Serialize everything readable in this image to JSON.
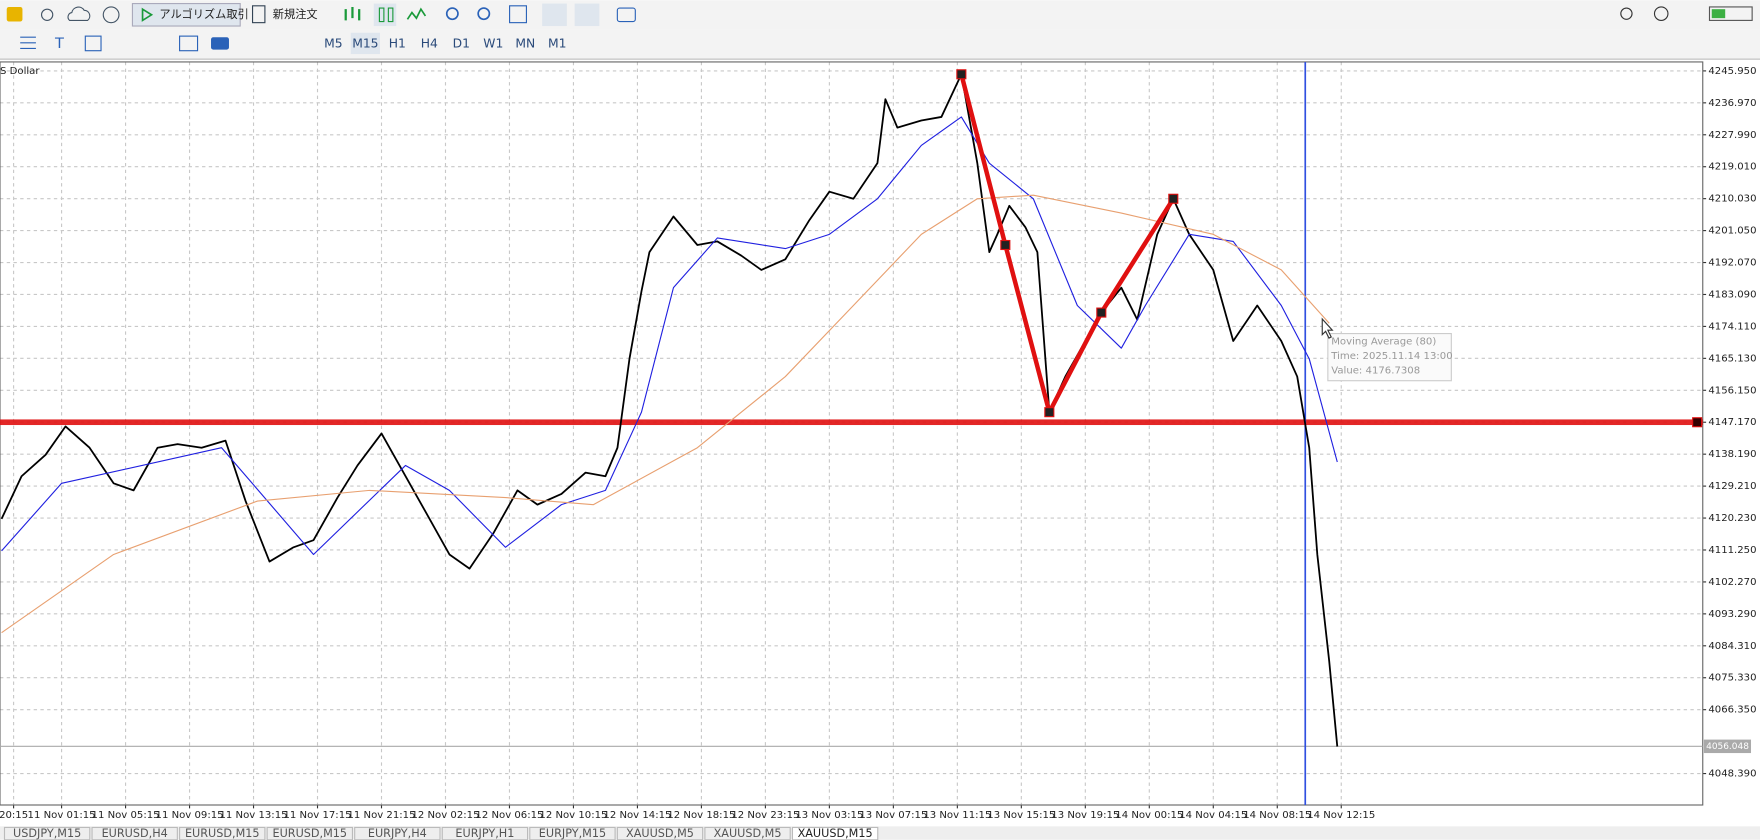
{
  "toolbar": {
    "algo_trading": "アルゴリズム取引",
    "new_order": "新規注文"
  },
  "timeframes": [
    "M5",
    "M15",
    "H1",
    "H4",
    "D1",
    "W1",
    "MN",
    "M1"
  ],
  "active_timeframe": "M15",
  "symbol_label": "S Dollar",
  "tooltip": {
    "title": "Moving Average (80)",
    "time": "Time: 2025.11.14 13:00",
    "value": "Value: 4176.7308"
  },
  "tabs": [
    "USDJPY,M15",
    "EURUSD,H4",
    "EURUSD,M15",
    "EURUSD,M15",
    "EURJPY,H4",
    "EURJPY,H1",
    "EURJPY,M15",
    "XAUUSD,M5",
    "XAUUSD,M5",
    "XAUUSD,M15"
  ],
  "active_tab": "XAUUSD,M15",
  "chart_data": {
    "type": "line",
    "xlim": [
      -15.4,
      410.4
    ],
    "ylim": [
      4039.55,
      4248.47
    ],
    "grid": true,
    "yticks": [
      {
        "value": 4245.95,
        "label": "4245.950"
      },
      {
        "value": 4236.97,
        "label": "4236.970"
      },
      {
        "value": 4227.99,
        "label": "4227.990"
      },
      {
        "value": 4219.01,
        "label": "4219.010"
      },
      {
        "value": 4210.03,
        "label": "4210.030"
      },
      {
        "value": 4201.05,
        "label": "4201.050"
      },
      {
        "value": 4192.07,
        "label": "4192.070"
      },
      {
        "value": 4183.09,
        "label": "4183.090"
      },
      {
        "value": 4174.11,
        "label": "4174.110"
      },
      {
        "value": 4165.13,
        "label": "4165.130"
      },
      {
        "value": 4156.15,
        "label": "4156.150"
      },
      {
        "value": 4147.17,
        "label": "4147.170"
      },
      {
        "value": 4138.19,
        "label": "4138.190"
      },
      {
        "value": 4129.21,
        "label": "4129.210"
      },
      {
        "value": 4120.23,
        "label": "4120.230"
      },
      {
        "value": 4111.25,
        "label": "4111.250"
      },
      {
        "value": 4102.27,
        "label": "4102.270"
      },
      {
        "value": 4093.29,
        "label": "4093.290"
      },
      {
        "value": 4084.31,
        "label": "4084.310"
      },
      {
        "value": 4075.33,
        "label": "4075.330"
      },
      {
        "value": 4066.35,
        "label": "4066.350"
      },
      {
        "value": 4048.39,
        "label": "4048.390"
      }
    ],
    "xticks": [
      {
        "value": -12,
        "label": "20:15"
      },
      {
        "value": 0,
        "label": "11 Nov 01:15"
      },
      {
        "value": 16,
        "label": "11 Nov 05:15"
      },
      {
        "value": 32,
        "label": "11 Nov 09:15"
      },
      {
        "value": 48,
        "label": "11 Nov 13:15"
      },
      {
        "value": 64,
        "label": "11 Nov 17:15"
      },
      {
        "value": 80,
        "label": "11 Nov 21:15"
      },
      {
        "value": 96,
        "label": "12 Nov 02:15"
      },
      {
        "value": 112,
        "label": "12 Nov 06:15"
      },
      {
        "value": 128,
        "label": "12 Nov 10:15"
      },
      {
        "value": 144,
        "label": "12 Nov 14:15"
      },
      {
        "value": 160,
        "label": "12 Nov 18:15"
      },
      {
        "value": 176,
        "label": "12 Nov 23:15"
      },
      {
        "value": 192,
        "label": "13 Nov 03:15"
      },
      {
        "value": 208,
        "label": "13 Nov 07:15"
      },
      {
        "value": 224,
        "label": "13 Nov 11:15"
      },
      {
        "value": 240,
        "label": "13 Nov 15:15"
      },
      {
        "value": 256,
        "label": "13 Nov 19:15"
      },
      {
        "value": 272,
        "label": "14 Nov 00:15"
      },
      {
        "value": 288,
        "label": "14 Nov 04:15"
      },
      {
        "value": 304,
        "label": "14 Nov 08:15"
      },
      {
        "value": 320,
        "label": "14 Nov 12:15"
      }
    ],
    "series": [
      {
        "color": "#000000",
        "x": [
          -15,
          -10,
          -4,
          1,
          7,
          13,
          18,
          24,
          29,
          35,
          41,
          46,
          52,
          58,
          63,
          69,
          74,
          80,
          86,
          91,
          97,
          102,
          108,
          114,
          119,
          125,
          131,
          136,
          139,
          142,
          145,
          147,
          153,
          159,
          164,
          170,
          175,
          181,
          187,
          192,
          198,
          204,
          206,
          209,
          215,
          220,
          225,
          229,
          232,
          234,
          237,
          241,
          244,
          247,
          251,
          255,
          260,
          265,
          269,
          274,
          278,
          282,
          288,
          293,
          299,
          305,
          309,
          312,
          314,
          317,
          319
        ],
        "values": [
          4120,
          4132,
          4138,
          4146,
          4140,
          4130,
          4128,
          4140,
          4141,
          4140,
          4142,
          4125,
          4108,
          4112,
          4114,
          4126,
          4135,
          4144,
          4132,
          4122,
          4110,
          4106,
          4116,
          4128,
          4124,
          4127,
          4133,
          4132,
          4140,
          4165,
          4184,
          4195,
          4205,
          4197,
          4198,
          4194,
          4190,
          4193,
          4204,
          4212,
          4210,
          4220,
          4238,
          4230,
          4232,
          4233,
          4245,
          4220,
          4195,
          4200,
          4208,
          4202,
          4195,
          4150,
          4160,
          4168,
          4178,
          4185,
          4176,
          4200,
          4210,
          4200,
          4190,
          4170,
          4180,
          4170,
          4160,
          4140,
          4110,
          4080,
          4056
        ]
      },
      {
        "color": "#2020e0",
        "x": [
          -15,
          0,
          40,
          63,
          86,
          97,
          111,
          125,
          136,
          145,
          153,
          164,
          181,
          192,
          204,
          215,
          225,
          232,
          243,
          254,
          265,
          271,
          282,
          293,
          305,
          312,
          319
        ],
        "values": [
          4111,
          4130,
          4140,
          4110,
          4135,
          4128,
          4112,
          4124,
          4128,
          4150,
          4185,
          4199,
          4196,
          4200,
          4210,
          4225,
          4233,
          4220,
          4210,
          4180,
          4168,
          4180,
          4200,
          4198,
          4180,
          4165,
          4136
        ]
      },
      {
        "color": "#e8a070",
        "x": [
          -15,
          13,
          49,
          77,
          111,
          133,
          159,
          181,
          198,
          215,
          229,
          243,
          265,
          288,
          305,
          317
        ],
        "values": [
          4088,
          4110,
          4125,
          4128,
          4126,
          4124,
          4140,
          4160,
          4180,
          4200,
          4210,
          4211,
          4206,
          4200,
          4190,
          4175
        ]
      },
      {
        "color": "#e01010",
        "x": [
          225,
          236,
          247,
          260,
          278
        ],
        "values": [
          4245,
          4197,
          4150,
          4178,
          4210
        ]
      }
    ],
    "level": {
      "value": 4147.17,
      "color": "#e01010"
    },
    "bid": 4056.048,
    "vline": 311
  }
}
